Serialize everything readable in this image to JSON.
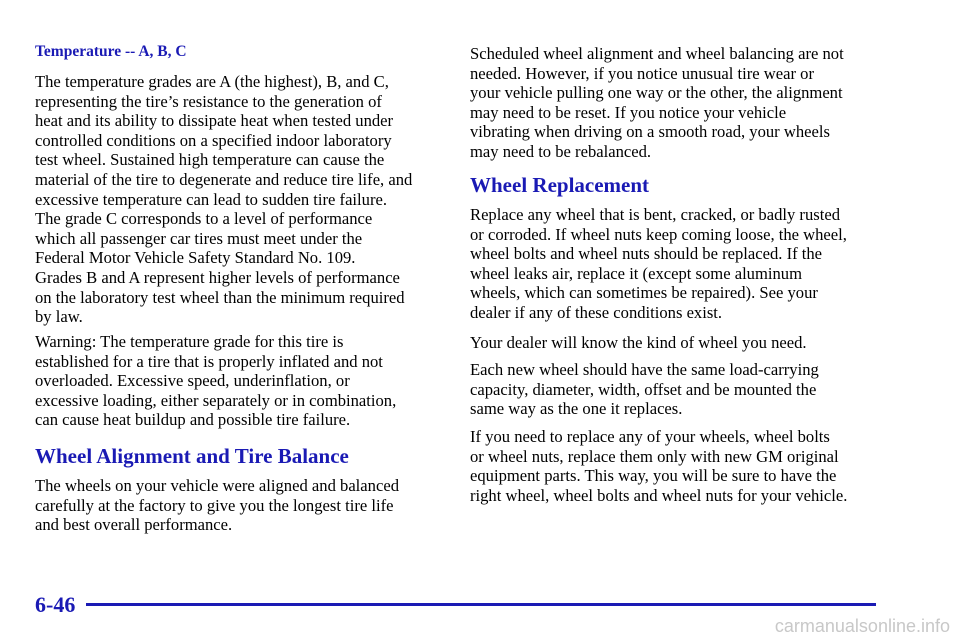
{
  "left_column": [
    {
      "kind": "subheading",
      "lines": [
        "Temperature -- A, B, C"
      ]
    },
    {
      "kind": "paragraph",
      "lines": [
        "The temperature grades are A (the highest), B, and C,",
        "representing the tire’s resistance to the generation of",
        "heat and its ability to dissipate heat when tested under",
        "controlled conditions on a specified indoor laboratory",
        "test wheel. Sustained high temperature can cause the",
        "material of the tire to degenerate and reduce tire life, and",
        "excessive temperature can lead to sudden tire failure.",
        "The grade C corresponds to a level of performance",
        "which all passenger car tires must meet under the",
        "Federal Motor Vehicle Safety Standard No. 109.",
        "Grades B and A represent higher levels of performance",
        "on the laboratory test wheel than the minimum required",
        "by law."
      ]
    },
    {
      "kind": "paragraph",
      "lines": [
        "Warning: The temperature grade for this tire is",
        "established for a tire that is properly inflated and not",
        "overloaded. Excessive speed, underinflation, or",
        "excessive loading, either separately or in combination,",
        "can cause heat buildup and possible tire failure."
      ]
    },
    {
      "kind": "heading",
      "lines": [
        "Wheel Alignment and Tire Balance"
      ]
    },
    {
      "kind": "paragraph",
      "lines": [
        "The wheels on your vehicle were aligned and balanced",
        "carefully at the factory to give you the longest tire life",
        "and best overall performance."
      ]
    }
  ],
  "right_column": [
    {
      "kind": "paragraph",
      "lines": [
        "Scheduled wheel alignment and wheel balancing are not",
        "needed. However, if you notice unusual tire wear or",
        "your vehicle pulling one way or the other, the alignment",
        "may need to be reset. If you notice your vehicle",
        "vibrating when driving on a smooth road, your wheels",
        "may need to be rebalanced."
      ]
    },
    {
      "kind": "heading",
      "lines": [
        "Wheel Replacement"
      ]
    },
    {
      "kind": "paragraph",
      "lines": [
        "Replace any wheel that is bent, cracked, or badly rusted",
        "or corroded. If wheel nuts keep coming loose, the wheel,",
        "wheel bolts and wheel nuts should be replaced. If the",
        "wheel leaks air, replace it (except some aluminum",
        "wheels, which can sometimes be repaired). See your",
        "dealer if any of these conditions exist."
      ]
    },
    {
      "kind": "paragraph",
      "lines": [
        "Your dealer will know the kind of wheel you need."
      ]
    },
    {
      "kind": "paragraph",
      "lines": [
        "Each new wheel should have the same load-carrying",
        "capacity, diameter, width, offset and be mounted the",
        "same way as the one it replaces."
      ]
    },
    {
      "kind": "paragraph",
      "lines": [
        "If you need to replace any of your wheels, wheel bolts",
        "or wheel nuts, replace them only with new GM original",
        "equipment parts. This way, you will be sure to have the",
        "right wheel, wheel bolts and wheel nuts for your vehicle."
      ]
    }
  ],
  "footer": {
    "page_number": "6-46",
    "watermark": "carmanualsonline.info"
  }
}
